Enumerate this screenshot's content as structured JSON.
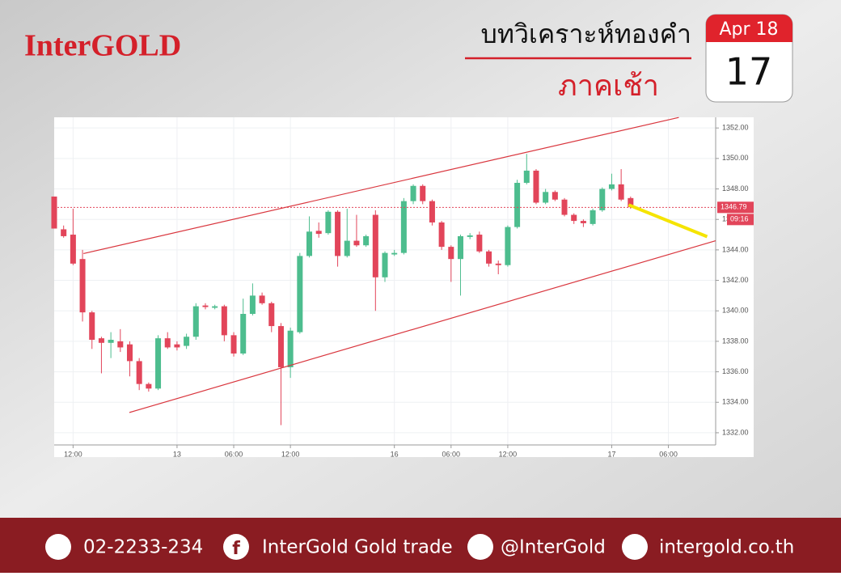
{
  "header": {
    "brand": "InterGOLD",
    "title": "บทวิเคราะห์ทองคำ",
    "subtitle": "ภาคเช้า",
    "calendar_month": "Apr 18",
    "calendar_day": "17"
  },
  "chart_data": {
    "type": "candlestick",
    "x": [
      0,
      1,
      2,
      3,
      4,
      5,
      6,
      7,
      8,
      9,
      10,
      11,
      12,
      13,
      14,
      15,
      16,
      17,
      18,
      19,
      20,
      21,
      22,
      23,
      24,
      25,
      26,
      27,
      28,
      29,
      30,
      31,
      32,
      33,
      34,
      35,
      36,
      37,
      38,
      39,
      40,
      41,
      42,
      43,
      44,
      45,
      46,
      47,
      48,
      49,
      50,
      51,
      52,
      53,
      54,
      55,
      56,
      57,
      58,
      59,
      60,
      61
    ],
    "open": [
      1347.5,
      1345.35,
      1345.0,
      1343.4,
      1339.9,
      1338.2,
      1337.9,
      1338.0,
      1337.8,
      1336.7,
      1335.2,
      1334.9,
      1338.2,
      1337.8,
      1337.7,
      1338.3,
      1340.35,
      1340.2,
      1340.3,
      1338.4,
      1337.2,
      1339.8,
      1341.0,
      1340.5,
      1339.0,
      1336.3,
      1338.6,
      1343.6,
      1345.25,
      1345.1,
      1346.5,
      1343.6,
      1344.6,
      1344.3,
      1346.3,
      1342.2,
      1343.7,
      1343.8,
      1347.2,
      1348.2,
      1347.2,
      1345.8,
      1344.2,
      1343.4,
      1344.85,
      1345.0,
      1343.9,
      1343.1,
      1343.0,
      1345.5,
      1348.4,
      1349.2,
      1347.1,
      1347.8,
      1347.3,
      1346.3,
      1345.9,
      1345.7,
      1346.6,
      1348.0,
      1348.3,
      1347.4
    ],
    "high": [
      1347.5,
      1345.6,
      1346.7,
      1344.0,
      1340.0,
      1338.3,
      1338.6,
      1338.8,
      1338.0,
      1336.9,
      1335.3,
      1338.4,
      1338.6,
      1338.0,
      1338.5,
      1340.5,
      1340.5,
      1340.4,
      1340.4,
      1338.6,
      1340.8,
      1341.8,
      1341.2,
      1340.6,
      1339.2,
      1338.9,
      1343.8,
      1346.2,
      1345.8,
      1346.6,
      1346.6,
      1346.7,
      1346.3,
      1345.0,
      1346.6,
      1343.9,
      1344.0,
      1347.4,
      1348.3,
      1348.3,
      1347.3,
      1345.9,
      1344.3,
      1345.0,
      1345.1,
      1345.2,
      1344.0,
      1343.3,
      1345.6,
      1348.6,
      1350.3,
      1349.3,
      1348.0,
      1347.9,
      1347.4,
      1346.4,
      1346.0,
      1346.7,
      1348.1,
      1349.0,
      1349.3,
      1347.5
    ],
    "low": [
      1345.4,
      1344.8,
      1343.0,
      1339.3,
      1337.5,
      1335.9,
      1336.9,
      1337.3,
      1335.7,
      1334.8,
      1334.7,
      1334.8,
      1337.5,
      1337.4,
      1337.5,
      1338.1,
      1340.1,
      1340.1,
      1338.0,
      1337.0,
      1337.1,
      1339.7,
      1340.4,
      1338.6,
      1332.5,
      1335.6,
      1338.5,
      1343.5,
      1344.8,
      1345.0,
      1342.9,
      1343.5,
      1344.2,
      1344.2,
      1340.0,
      1341.9,
      1343.6,
      1343.7,
      1347.0,
      1347.0,
      1345.6,
      1344.0,
      1341.9,
      1341.0,
      1344.7,
      1343.8,
      1342.9,
      1342.4,
      1342.9,
      1345.4,
      1348.3,
      1347.0,
      1347.0,
      1347.2,
      1346.2,
      1345.7,
      1345.5,
      1345.6,
      1346.5,
      1347.9,
      1347.2,
      1346.7
    ],
    "close": [
      1345.4,
      1344.9,
      1343.1,
      1339.9,
      1338.1,
      1337.9,
      1338.1,
      1337.6,
      1336.7,
      1335.2,
      1334.9,
      1338.2,
      1337.6,
      1337.6,
      1338.3,
      1340.3,
      1340.25,
      1340.3,
      1338.4,
      1337.2,
      1339.8,
      1341.0,
      1340.5,
      1339.0,
      1336.3,
      1338.7,
      1343.6,
      1345.2,
      1345.05,
      1346.5,
      1343.6,
      1344.6,
      1344.3,
      1344.9,
      1342.2,
      1343.8,
      1343.8,
      1347.2,
      1348.2,
      1347.2,
      1345.8,
      1344.2,
      1343.4,
      1344.9,
      1344.95,
      1343.9,
      1343.1,
      1343.0,
      1345.5,
      1348.4,
      1349.2,
      1347.1,
      1347.8,
      1347.3,
      1346.3,
      1345.9,
      1345.75,
      1346.6,
      1348.0,
      1348.3,
      1347.3,
      1346.8
    ],
    "up_color": "#4dbd8e",
    "down_color": "#e2455a",
    "xlim": [
      0,
      70
    ],
    "ylim": [
      1331.2,
      1352.7
    ],
    "xticks": [
      {
        "value": 2,
        "label": "12:00"
      },
      {
        "value": 13,
        "label": "13"
      },
      {
        "value": 19,
        "label": "06:00"
      },
      {
        "value": 25,
        "label": "12:00"
      },
      {
        "value": 36,
        "label": "16"
      },
      {
        "value": 42,
        "label": "06:00"
      },
      {
        "value": 48,
        "label": "12:00"
      },
      {
        "value": 59,
        "label": "17"
      },
      {
        "value": 65,
        "label": "06:00"
      }
    ],
    "yticks": [
      {
        "value": 1332,
        "label": "1332.00"
      },
      {
        "value": 1334,
        "label": "1334.00"
      },
      {
        "value": 1336,
        "label": "1336.00"
      },
      {
        "value": 1338,
        "label": "1338.00"
      },
      {
        "value": 1340,
        "label": "1340.00"
      },
      {
        "value": 1342,
        "label": "1342.00"
      },
      {
        "value": 1344,
        "label": "1344.00"
      },
      {
        "value": 1346,
        "label": "1346.00"
      },
      {
        "value": 1348,
        "label": "1348.00"
      },
      {
        "value": 1350,
        "label": "1350.00"
      },
      {
        "value": 1352,
        "label": "1352.00"
      }
    ],
    "grid": true,
    "lines": [
      {
        "x": [
          3.1,
          66.1
        ],
        "y": [
          1343.76,
          1352.69
        ],
        "color": "#d9363e"
      },
      {
        "x": [
          7.96,
          70
        ],
        "y": [
          1333.33,
          1344.6
        ],
        "color": "#d9363e"
      },
      {
        "x": [
          60.8,
          69.1
        ],
        "y": [
          1346.95,
          1344.87
        ],
        "color": "#f5e400"
      }
    ],
    "price_line": {
      "value": 1346.79,
      "label": "1346.79",
      "color": "#e2455a"
    },
    "countdown": "09:16"
  },
  "footer": {
    "phone": "02-2233-234",
    "facebook": "InterGold Gold trade",
    "line": "@InterGold",
    "website": "intergold.co.th"
  }
}
